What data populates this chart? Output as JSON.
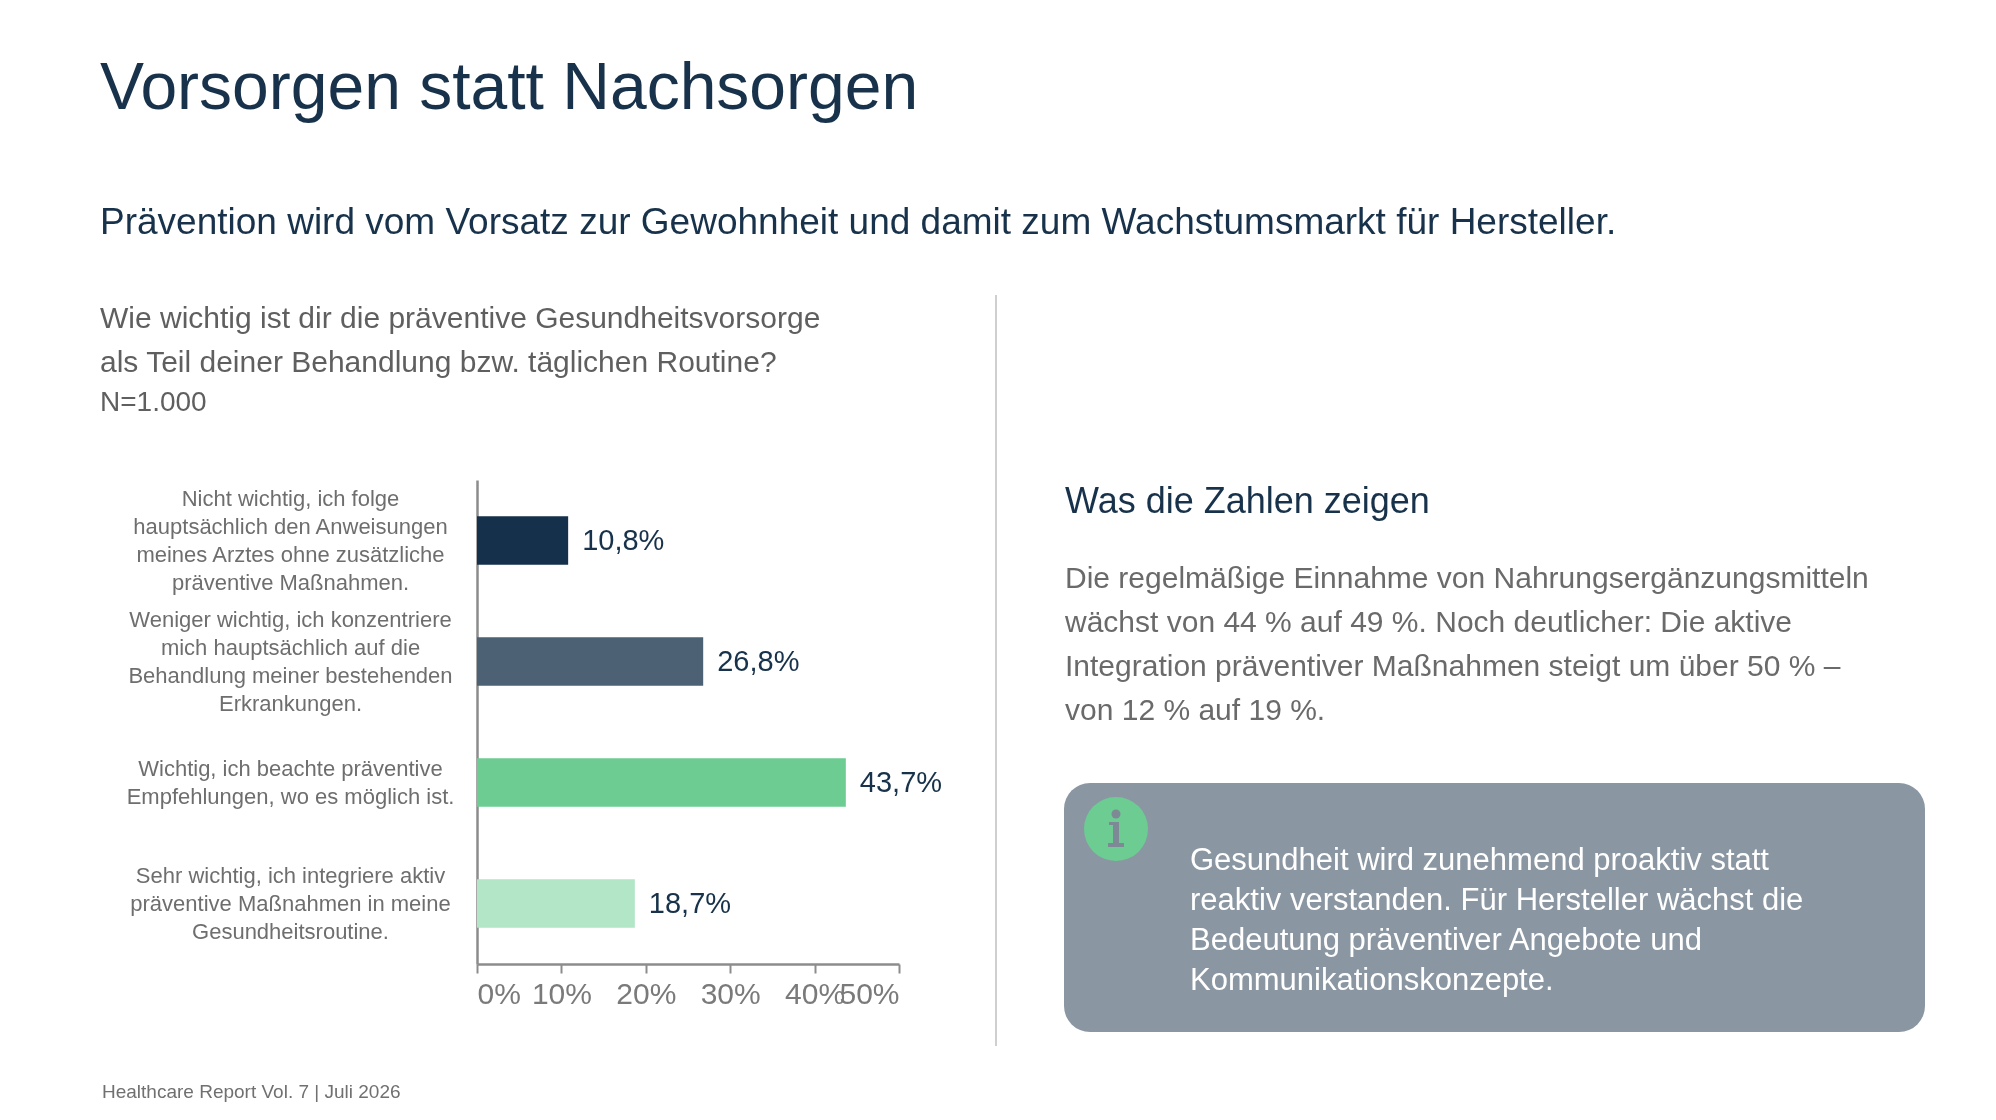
{
  "chart_data": {
    "type": "bar",
    "orientation": "horizontal",
    "title": "Vorsorgen statt Nachsorgen",
    "subtitle": "Prävention wird vom Vorsatz zur Gewohnheit und damit zum Wachstumsmarkt für Hersteller.",
    "categories": [
      "Nicht wichtig, ich folge hauptsächlich den Anweisungen meines Arztes ohne zusätzliche präventive Maßnahmen.",
      "Weniger wichtig, ich konzentriere mich hauptsächlich auf die Behandlung meiner bestehenden Erkrankungen.",
      "Wichtig, ich beachte präventive Empfehlungen, wo es möglich ist.",
      "Sehr wichtig, ich integriere aktiv präventive Maßnahmen in meine Gesundheitsroutine."
    ],
    "values": [
      10.8,
      26.8,
      43.7,
      18.7
    ],
    "colors": [
      "#14304a",
      "#4d6174",
      "#6ccc92",
      "#b3e5c7"
    ],
    "value_labels": [
      "10,8%",
      "26,8%",
      "43,7%",
      "18,7%"
    ],
    "xlim": [
      0,
      50
    ],
    "xticks": [
      {
        "value": 0,
        "label": "0%"
      },
      {
        "value": 10,
        "label": "10%"
      },
      {
        "value": 20,
        "label": "20%"
      },
      {
        "value": 30,
        "label": "30%"
      },
      {
        "value": 40,
        "label": "40%"
      },
      {
        "value": 50,
        "label": "50%"
      }
    ],
    "annotations": [
      "Wie wichtig ist dir die präventive Gesundheitsvorsorge als Teil deiner Behandlung bzw. täglichen Routine?",
      "N=1.000",
      "Was die Zahlen zeigen",
      "Die regelmäßige Einnahme von Nahrungsergänzungsmitteln wächst von 44 % auf 49 %. Noch deutlicher: Die aktive Integration präventiver Maßnahmen steigt um über 50 % – von 12 % auf 19 %.",
      "Gesundheit wird zunehmend proaktiv statt reaktiv verstanden. Für Hersteller wächst die Bedeutung präventiver Angebote und Kommunikationskonzepte.",
      "Healthcare Report Vol. 7 | Juli 2026"
    ]
  }
}
